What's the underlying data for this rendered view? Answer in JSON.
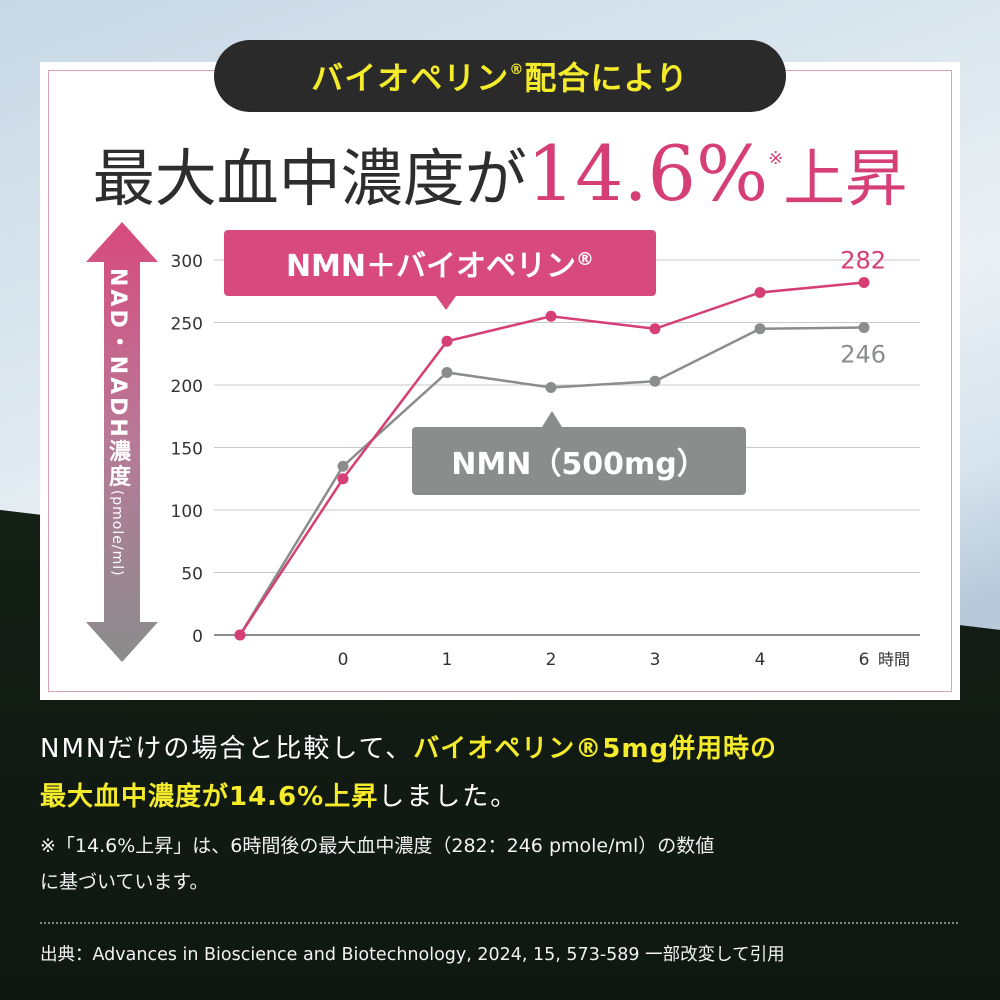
{
  "header": {
    "pill_text": "バイオペリン",
    "pill_mark": "®",
    "pill_suffix": "配合により",
    "headline_main": "最大血中濃度が",
    "headline_value": "14.6%",
    "headline_mark": "※",
    "headline_tail": "上昇"
  },
  "chart_data": {
    "type": "line",
    "x": [
      "",
      "0",
      "1",
      "2",
      "3",
      "4",
      "6"
    ],
    "x_unit_label": "時間",
    "y_ticks": [
      0,
      50,
      100,
      150,
      200,
      250,
      300
    ],
    "ylim": [
      0,
      300
    ],
    "ylabel_main": "NAD・NADH濃度",
    "ylabel_unit": "(pmole/ml)",
    "grid": true,
    "series": [
      {
        "name": "NMN＋バイオペリン",
        "name_mark": "®",
        "color": "#d63f76",
        "values": [
          0,
          125,
          235,
          255,
          245,
          274,
          282
        ],
        "end_label": "282"
      },
      {
        "name": "NMN（500mg）",
        "color": "#8a8d8c",
        "values": [
          0,
          135,
          210,
          198,
          203,
          245,
          246
        ],
        "end_label": "246"
      }
    ]
  },
  "body": {
    "line1_plain": "NMNだけの場合と比較して、",
    "line1_highlight": "バイオペリン®5mg併用時の",
    "line2_highlight": "最大血中濃度が14.6%上昇",
    "line2_plain": "しました。"
  },
  "note": {
    "line1": "※「14.6%上昇」は、6時間後の最大血中濃度（282：246 pmole/ml）の数値",
    "line2": "に基づいています。"
  },
  "source": "出典：Advances in Bioscience and Biotechnology, 2024, 15, 573-589 一部改変して引用",
  "colors": {
    "accent_pink": "#d63f76",
    "accent_yellow": "#f4ec2a",
    "series_gray": "#8a8d8c"
  }
}
